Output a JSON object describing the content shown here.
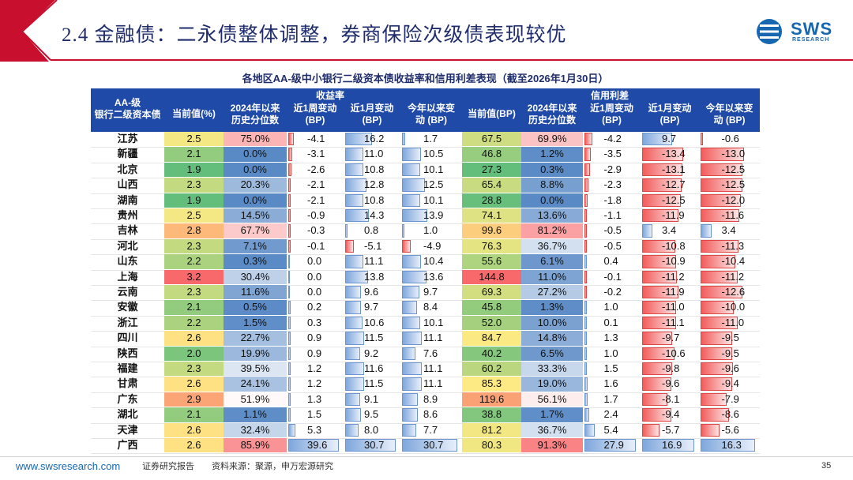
{
  "slide": {
    "title": "2.4 金融债：二永债整体调整，券商保险次级债表现较优",
    "table_title": "各地区AA-级中小银行二级资本债收益率和信用利差表现（截至2026年1月30日）",
    "logo_text": "SWS",
    "logo_sub": "RESEARCH"
  },
  "header": {
    "col0": [
      "AA-级",
      "银行二级资本债"
    ],
    "group_yield": "收益率",
    "group_spread": "信用利差",
    "yield_cols": [
      [
        "当前值(%)"
      ],
      [
        "2024年以来",
        "历史分位数"
      ],
      [
        "近1周变动",
        "(BP)"
      ],
      [
        "近1月变动",
        "(BP)"
      ],
      [
        "今年以来变",
        "动 (BP)"
      ]
    ],
    "spread_cols": [
      [
        "当前值(BP)"
      ],
      [
        "2024年以来",
        "历史分位数"
      ],
      [
        "近1周变动",
        "(BP)"
      ],
      [
        "近1月变动",
        "(BP)"
      ],
      [
        "今年以来变",
        "动 (BP)"
      ]
    ]
  },
  "rows": [
    {
      "prov": "江苏",
      "y": "2.5",
      "yp": "75.0%",
      "yw": "-4.1",
      "ym": "16.2",
      "yy": "1.7",
      "s": "67.5",
      "sp": "69.9%",
      "sw": "-4.2",
      "sm": "9.7",
      "sy": "-0.6"
    },
    {
      "prov": "新疆",
      "y": "2.1",
      "yp": "0.0%",
      "yw": "-3.1",
      "ym": "11.0",
      "yy": "10.5",
      "s": "46.8",
      "sp": "1.2%",
      "sw": "-3.5",
      "sm": "-13.4",
      "sy": "-13.0"
    },
    {
      "prov": "北京",
      "y": "1.9",
      "yp": "0.0%",
      "yw": "-2.6",
      "ym": "10.8",
      "yy": "10.1",
      "s": "27.3",
      "sp": "0.3%",
      "sw": "-2.9",
      "sm": "-13.1",
      "sy": "-12.5"
    },
    {
      "prov": "山西",
      "y": "2.3",
      "yp": "20.3%",
      "yw": "-2.1",
      "ym": "12.8",
      "yy": "12.5",
      "s": "65.4",
      "sp": "8.8%",
      "sw": "-2.3",
      "sm": "-12.7",
      "sy": "-12.5"
    },
    {
      "prov": "湖南",
      "y": "1.9",
      "yp": "0.0%",
      "yw": "-2.1",
      "ym": "10.8",
      "yy": "10.1",
      "s": "28.8",
      "sp": "0.0%",
      "sw": "-1.8",
      "sm": "-12.5",
      "sy": "-12.0"
    },
    {
      "prov": "贵州",
      "y": "2.5",
      "yp": "14.5%",
      "yw": "-0.9",
      "ym": "14.3",
      "yy": "13.9",
      "s": "74.1",
      "sp": "13.6%",
      "sw": "-1.1",
      "sm": "-11.9",
      "sy": "-11.6"
    },
    {
      "prov": "吉林",
      "y": "2.8",
      "yp": "67.7%",
      "yw": "-0.3",
      "ym": "0.8",
      "yy": "1.0",
      "s": "99.6",
      "sp": "81.2%",
      "sw": "-0.5",
      "sm": "3.4",
      "sy": "3.4"
    },
    {
      "prov": "河北",
      "y": "2.3",
      "yp": "7.1%",
      "yw": "-0.1",
      "ym": "-5.1",
      "yy": "-4.9",
      "s": "76.3",
      "sp": "36.7%",
      "sw": "-0.5",
      "sm": "-10.8",
      "sy": "-11.3"
    },
    {
      "prov": "山东",
      "y": "2.2",
      "yp": "0.3%",
      "yw": "0.0",
      "ym": "11.1",
      "yy": "10.4",
      "s": "55.6",
      "sp": "6.1%",
      "sw": "0.4",
      "sm": "-10.9",
      "sy": "-10.4"
    },
    {
      "prov": "上海",
      "y": "3.2",
      "yp": "30.4%",
      "yw": "0.0",
      "ym": "13.8",
      "yy": "13.6",
      "s": "144.8",
      "sp": "11.0%",
      "sw": "-0.1",
      "sm": "-11.2",
      "sy": "-11.2"
    },
    {
      "prov": "云南",
      "y": "2.3",
      "yp": "11.6%",
      "yw": "0.0",
      "ym": "9.6",
      "yy": "9.7",
      "s": "69.3",
      "sp": "27.2%",
      "sw": "-0.2",
      "sm": "-11.9",
      "sy": "-12.6"
    },
    {
      "prov": "安徽",
      "y": "2.1",
      "yp": "0.5%",
      "yw": "0.2",
      "ym": "9.7",
      "yy": "8.4",
      "s": "45.8",
      "sp": "1.3%",
      "sw": "1.0",
      "sm": "-11.0",
      "sy": "-10.0"
    },
    {
      "prov": "浙江",
      "y": "2.2",
      "yp": "1.5%",
      "yw": "0.3",
      "ym": "10.6",
      "yy": "10.1",
      "s": "52.0",
      "sp": "10.0%",
      "sw": "0.1",
      "sm": "-11.1",
      "sy": "-11.0"
    },
    {
      "prov": "四川",
      "y": "2.6",
      "yp": "22.7%",
      "yw": "0.9",
      "ym": "11.5",
      "yy": "11.1",
      "s": "84.7",
      "sp": "14.8%",
      "sw": "1.3",
      "sm": "-9.7",
      "sy": "-9.5"
    },
    {
      "prov": "陕西",
      "y": "2.0",
      "yp": "19.9%",
      "yw": "0.9",
      "ym": "9.2",
      "yy": "7.6",
      "s": "40.2",
      "sp": "6.5%",
      "sw": "1.0",
      "sm": "-10.6",
      "sy": "-9.5"
    },
    {
      "prov": "福建",
      "y": "2.3",
      "yp": "39.5%",
      "yw": "1.2",
      "ym": "11.6",
      "yy": "11.1",
      "s": "60.2",
      "sp": "33.3%",
      "sw": "1.5",
      "sm": "-9.8",
      "sy": "-9.6"
    },
    {
      "prov": "甘肃",
      "y": "2.6",
      "yp": "24.1%",
      "yw": "1.2",
      "ym": "11.5",
      "yy": "11.1",
      "s": "85.3",
      "sp": "19.0%",
      "sw": "1.6",
      "sm": "-9.6",
      "sy": "-9.4"
    },
    {
      "prov": "广东",
      "y": "2.9",
      "yp": "51.9%",
      "yw": "1.3",
      "ym": "9.1",
      "yy": "8.9",
      "s": "119.6",
      "sp": "56.1%",
      "sw": "1.7",
      "sm": "-8.1",
      "sy": "-7.9"
    },
    {
      "prov": "湖北",
      "y": "2.1",
      "yp": "1.1%",
      "yw": "1.5",
      "ym": "9.5",
      "yy": "8.6",
      "s": "38.8",
      "sp": "1.7%",
      "sw": "2.4",
      "sm": "-9.4",
      "sy": "-8.6"
    },
    {
      "prov": "天津",
      "y": "2.6",
      "yp": "32.4%",
      "yw": "5.3",
      "ym": "8.0",
      "yy": "7.7",
      "s": "81.2",
      "sp": "36.7%",
      "sw": "5.4",
      "sm": "-5.7",
      "sy": "-5.6"
    },
    {
      "prov": "广西",
      "y": "2.6",
      "yp": "85.9%",
      "yw": "39.6",
      "ym": "30.7",
      "yy": "30.7",
      "s": "80.3",
      "sp": "91.3%",
      "sw": "27.9",
      "sm": "16.9",
      "sy": "16.3"
    }
  ],
  "footer": {
    "url": "www.swsresearch.com",
    "doc_type": "证券研究报告",
    "source": "资料来源：聚源，申万宏源研究",
    "page": "35"
  },
  "colors": {
    "brand": "#1767b0",
    "header_bg": "#1f4aa8",
    "title": "#1f2d6b",
    "header_red": "#c8102e"
  }
}
